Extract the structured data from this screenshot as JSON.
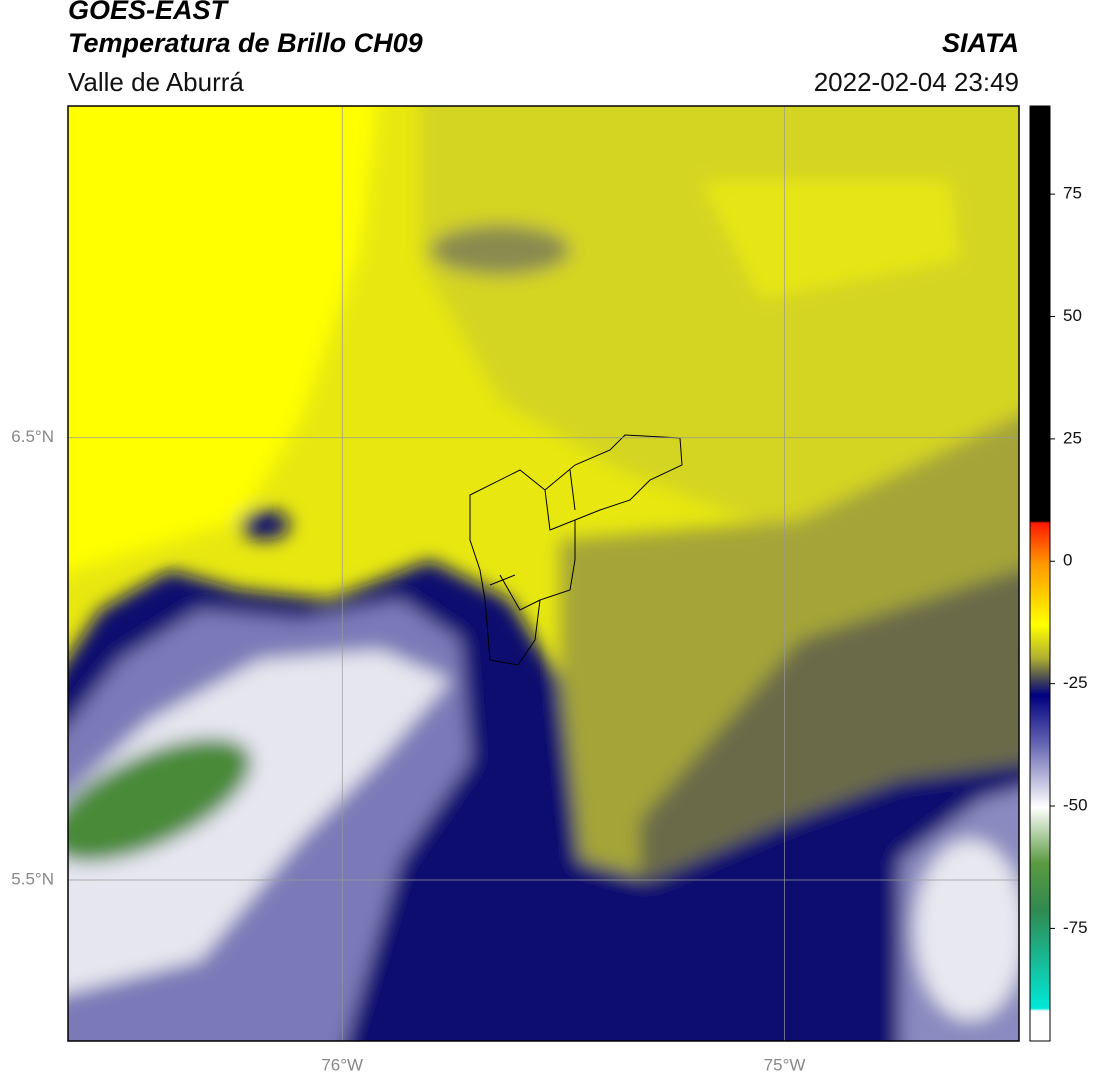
{
  "header": {
    "title": "GOES-EAST",
    "subtitle": "Temperatura de Brillo CH09",
    "region": "Valle de Aburrá",
    "source": "SIATA",
    "timestamp": "2022-02-04 23:49"
  },
  "map": {
    "xlim": [
      -76.62,
      -74.47
    ],
    "ylim": [
      5.136,
      7.25
    ],
    "xticks": [
      {
        "value": -76,
        "label": "76°W"
      },
      {
        "value": -75,
        "label": "75°W"
      }
    ],
    "yticks": [
      {
        "value": 6.5,
        "label": "6.5°N"
      },
      {
        "value": 5.5,
        "label": "5.5°N"
      }
    ]
  },
  "colorbar": {
    "lim": [
      -98,
      93
    ],
    "ticks": [
      75,
      50,
      25,
      0,
      -25,
      -50,
      -75
    ]
  }
}
